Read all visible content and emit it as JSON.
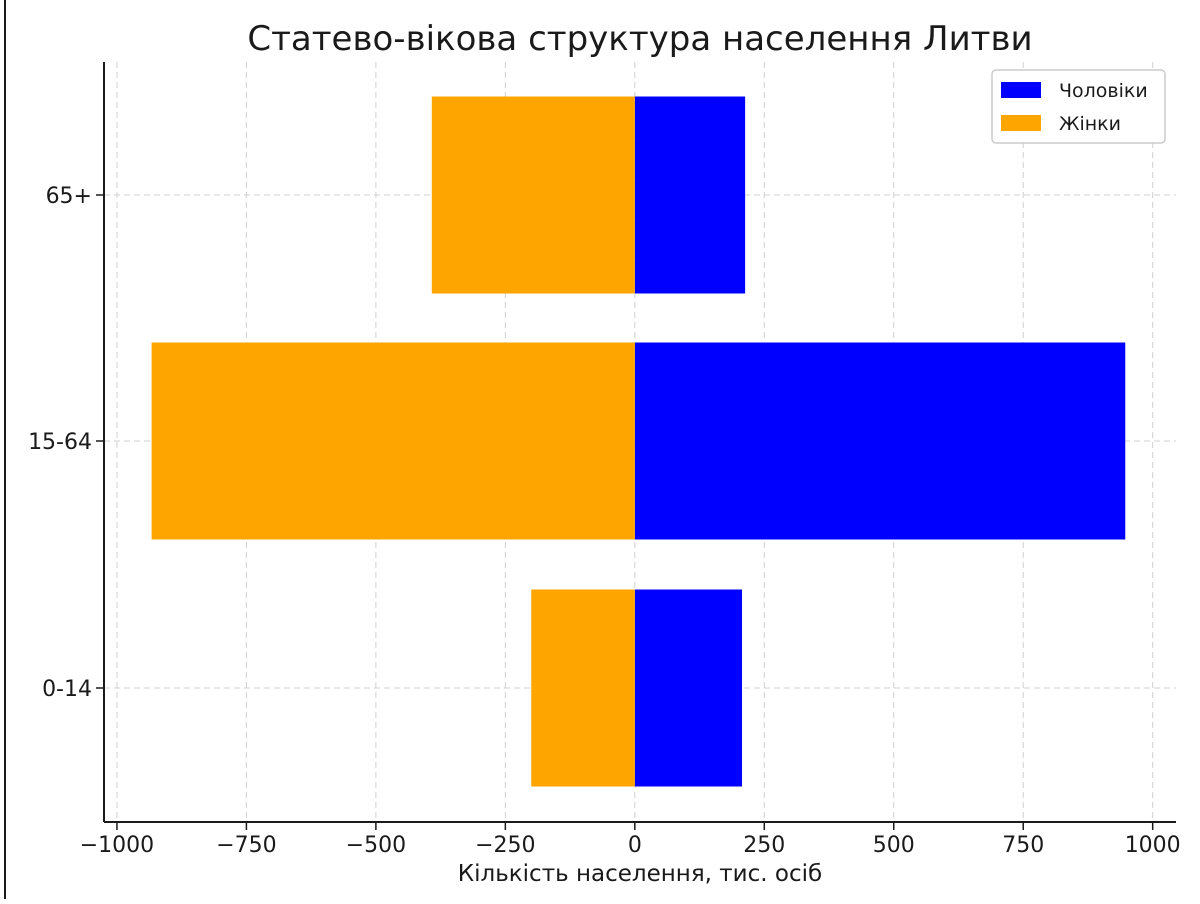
{
  "chart_data": {
    "type": "bar",
    "orientation": "horizontal",
    "title": "Статево-вікова структура населення Литви",
    "xlabel": "Кількість населення, тис. осіб",
    "ylabel": "",
    "categories": [
      "0-14",
      "15-64",
      "65+"
    ],
    "series": [
      {
        "name": "Чоловіки",
        "color": "#0000ff",
        "values": [
          207,
          947,
          213
        ]
      },
      {
        "name": "Жінки",
        "color": "#ffa500",
        "values": [
          -200,
          -933,
          -392
        ]
      }
    ],
    "xlim": [
      -1025,
      1045
    ],
    "x_ticks": [
      -1000,
      -750,
      -500,
      -250,
      0,
      250,
      500,
      750,
      1000
    ],
    "x_tick_labels": [
      "−1000",
      "−750",
      "−500",
      "−250",
      "0",
      "250",
      "500",
      "750",
      "1000"
    ],
    "grid": true,
    "legend_position": "top-right"
  }
}
